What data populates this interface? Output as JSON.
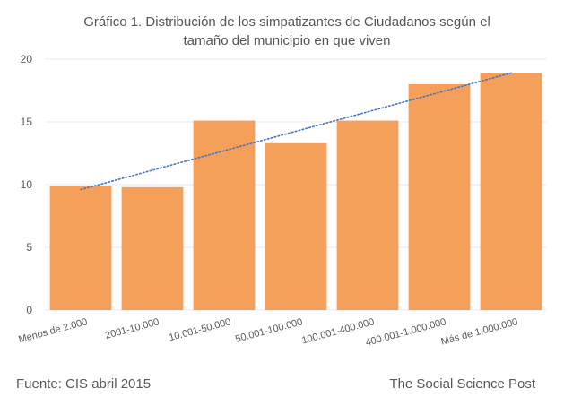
{
  "title_line1": "Gráfico 1. Distribución de los simpatizantes de  Ciudadanos según el",
  "title_line2": "tamaño del municipio en que viven",
  "footer_left": "Fuente: CIS abril 2015",
  "footer_right": "The Social Science Post",
  "colors": {
    "bar": "#F5A05A",
    "trend": "#4472C4",
    "grid": "#E8E8E8",
    "axis_text": "#595959"
  },
  "chart_data": {
    "type": "bar",
    "categories": [
      "Menos de 2.000",
      "2001-10.000",
      "10.001-50.000",
      "50.001-100.000",
      "100.001-400.000",
      "400.001-1.000.000",
      "Más de 1.000.000"
    ],
    "values": [
      9.9,
      9.8,
      15.1,
      13.3,
      15.1,
      18.0,
      18.9
    ],
    "ylim": [
      0,
      20
    ],
    "yticks": [
      0,
      5,
      10,
      15,
      20
    ],
    "trendline": {
      "type": "linear",
      "style": "dotted",
      "from": 9.6,
      "to": 18.9
    },
    "grid": true,
    "xlabel": "",
    "ylabel": ""
  }
}
